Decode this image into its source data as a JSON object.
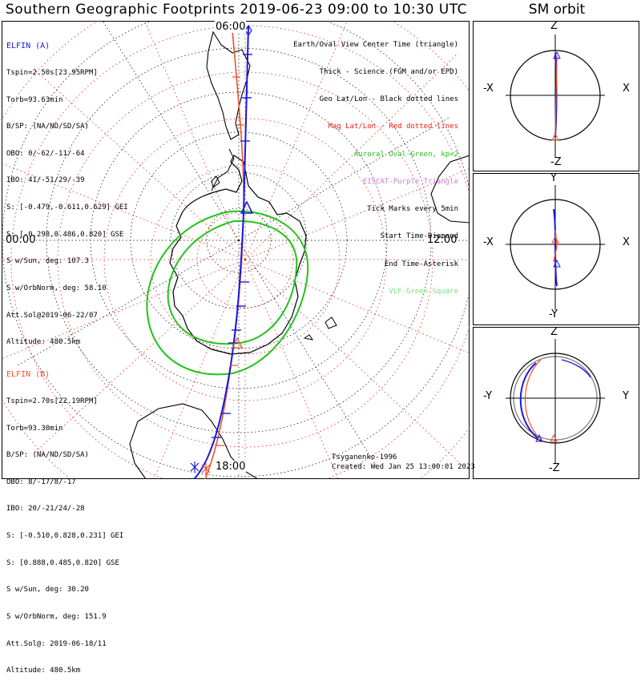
{
  "title": "Southern Geographic Footprints 2019-06-23 09:00 to 10:30 UTC",
  "sm_title": "SM orbit",
  "map": {
    "hour_labels": {
      "top": "06:00",
      "left": "00:00",
      "right": "12:00",
      "bottom": "18:00"
    }
  },
  "elfin_a": {
    "header": "ELFIN (A)",
    "color": "#1a1adf",
    "lines": [
      "Tspin=2.50s[23.95RPM]",
      "Torb=93.63min",
      "B/SP: (NA/ND/SD/SA)",
      "OBO: 0/-62/-11/-64",
      "IBO: 41/-51/29/-39",
      "S: [-0.479,-0.611,0.629] GEI",
      "S: [-0.298,0.486,0.820] GSE",
      "S w/Sun, deg: 107.3",
      "S w/OrbNorm, deg: 58.10",
      "Att.Sol@2019-06-22/07",
      "Altitude: 480.5km"
    ]
  },
  "elfin_b": {
    "header": "ELFIN (B)",
    "color": "#f0522a",
    "lines": [
      "Tspin=2.70s[22.19RPM]",
      "Torb=93.30min",
      "B/SP: (NA/ND/SD/SA)",
      "OBO: 8/-17/8/-17",
      "IBO: 20/-21/24/-28",
      "S: [-0.510,0.828,0.231] GEI",
      "S: [0.888,0.485,0.820] GSE",
      "S w/Sun, deg: 30.20",
      "S w/OrbNorm, deg: 151.9",
      "Att.Sol@: 2019-06-18/11",
      "Altitude: 480.5km"
    ]
  },
  "legend": [
    {
      "text": "Earth/Oval View Center Time (triangle)",
      "color": "#000000"
    },
    {
      "text": "Thick - Science (FGM and/or EPD)",
      "color": "#000000"
    },
    {
      "text": "Geo Lat/Lon - Black dotted lines",
      "color": "#000000"
    },
    {
      "text": "Mag Lat/Lon - Red dotted lines",
      "color": "#e8201a"
    },
    {
      "text": "Auroral Oval-Green, kp=2",
      "color": "#22c41a"
    },
    {
      "text": "EISCAT-Purple Triangle",
      "color": "#cc7adc"
    },
    {
      "text": "Tick Marks every 5min",
      "color": "#000000"
    },
    {
      "text": "Start Time-Diamond",
      "color": "#000000"
    },
    {
      "text": "End Time-Asterisk",
      "color": "#000000"
    },
    {
      "text": "VLF-Green Square",
      "color": "#7ae07a"
    }
  ],
  "credits": {
    "model": "Tsyganenko-1996",
    "created": "Created: Wed Jan 25 13:00:01 2023"
  },
  "sm_panels": [
    {
      "top": "Z",
      "bottom": "-Z",
      "left": "-X",
      "right": "X"
    },
    {
      "top": "Y",
      "bottom": "-Y",
      "left": "-X",
      "right": "X"
    },
    {
      "top": "Z",
      "bottom": "-Z",
      "left": "-Y",
      "right": "Y"
    }
  ],
  "colors": {
    "elfin_a": "#1a1adf",
    "elfin_b": "#f0522a",
    "auroral_oval": "#22c41a",
    "mag_grid": "#e8201a",
    "geo_grid": "#000000"
  }
}
